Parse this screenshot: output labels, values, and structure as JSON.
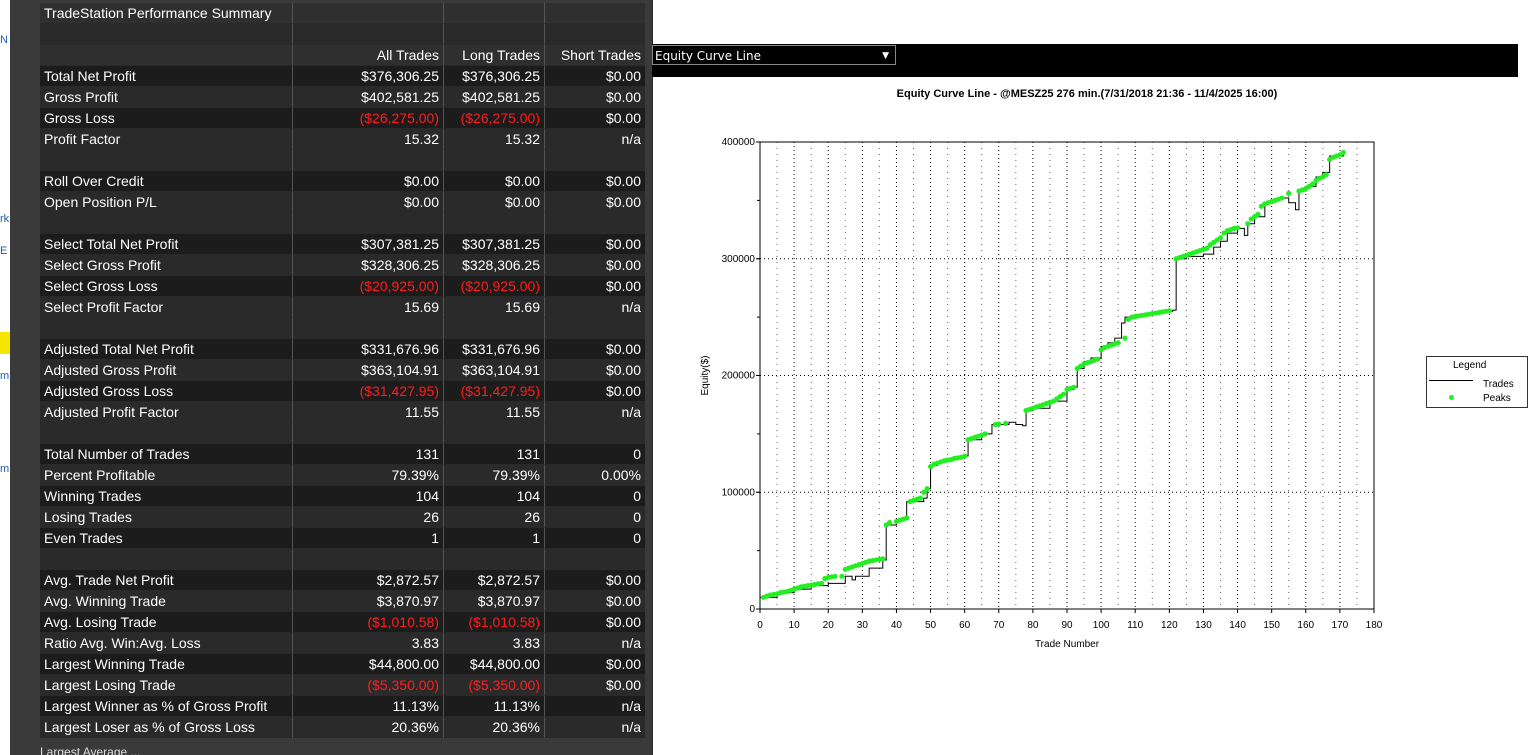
{
  "background": {
    "strip_chars": [
      "N",
      "rk",
      "E",
      "m",
      "m"
    ]
  },
  "summary": {
    "title": "TradeStation Performance Summary",
    "columns": [
      "All Trades",
      "Long Trades",
      "Short Trades"
    ],
    "rows": [
      {
        "label": "Total Net Profit",
        "all": "$376,306.25",
        "long": "$376,306.25",
        "short": "$0.00"
      },
      {
        "label": "Gross Profit",
        "all": "$402,581.25",
        "long": "$402,581.25",
        "short": "$0.00"
      },
      {
        "label": "Gross Loss",
        "all": "($26,275.00)",
        "long": "($26,275.00)",
        "short": "$0.00",
        "neg": true
      },
      {
        "label": "Profit Factor",
        "all": "15.32",
        "long": "15.32",
        "short": "n/a"
      },
      {
        "blank": true
      },
      {
        "label": "Roll Over Credit",
        "all": "$0.00",
        "long": "$0.00",
        "short": "$0.00"
      },
      {
        "label": "Open Position P/L",
        "all": "$0.00",
        "long": "$0.00",
        "short": "$0.00"
      },
      {
        "blank": true
      },
      {
        "label": "Select Total Net Profit",
        "all": "$307,381.25",
        "long": "$307,381.25",
        "short": "$0.00"
      },
      {
        "label": "Select Gross Profit",
        "all": "$328,306.25",
        "long": "$328,306.25",
        "short": "$0.00"
      },
      {
        "label": "Select Gross Loss",
        "all": "($20,925.00)",
        "long": "($20,925.00)",
        "short": "$0.00",
        "neg": true
      },
      {
        "label": "Select Profit Factor",
        "all": "15.69",
        "long": "15.69",
        "short": "n/a"
      },
      {
        "blank": true
      },
      {
        "label": "Adjusted Total Net Profit",
        "all": "$331,676.96",
        "long": "$331,676.96",
        "short": "$0.00"
      },
      {
        "label": "Adjusted Gross Profit",
        "all": "$363,104.91",
        "long": "$363,104.91",
        "short": "$0.00"
      },
      {
        "label": "Adjusted Gross Loss",
        "all": "($31,427.95)",
        "long": "($31,427.95)",
        "short": "$0.00",
        "neg": true
      },
      {
        "label": "Adjusted Profit Factor",
        "all": "11.55",
        "long": "11.55",
        "short": "n/a"
      },
      {
        "blank": true
      },
      {
        "label": "Total Number of Trades",
        "all": "131",
        "long": "131",
        "short": "0"
      },
      {
        "label": "Percent Profitable",
        "all": "79.39%",
        "long": "79.39%",
        "short": "0.00%"
      },
      {
        "label": "Winning Trades",
        "all": "104",
        "long": "104",
        "short": "0"
      },
      {
        "label": "Losing Trades",
        "all": "26",
        "long": "26",
        "short": "0"
      },
      {
        "label": "Even Trades",
        "all": "1",
        "long": "1",
        "short": "0"
      },
      {
        "blank": true
      },
      {
        "label": "Avg. Trade Net Profit",
        "all": "$2,872.57",
        "long": "$2,872.57",
        "short": "$0.00"
      },
      {
        "label": "Avg. Winning Trade",
        "all": "$3,870.97",
        "long": "$3,870.97",
        "short": "$0.00"
      },
      {
        "label": "Avg. Losing Trade",
        "all": "($1,010.58)",
        "long": "($1,010.58)",
        "short": "$0.00",
        "neg": true
      },
      {
        "label": "Ratio Avg. Win:Avg. Loss",
        "all": "3.83",
        "long": "3.83",
        "short": "n/a"
      },
      {
        "label": "Largest Winning Trade",
        "all": "$44,800.00",
        "long": "$44,800.00",
        "short": "$0.00"
      },
      {
        "label": "Largest Losing Trade",
        "all": "($5,350.00)",
        "long": "($5,350.00)",
        "short": "$0.00",
        "neg": true
      },
      {
        "label": "Largest Winner as % of Gross Profit",
        "all": "11.13%",
        "long": "11.13%",
        "short": "n/a"
      },
      {
        "label": "Largest Loser as % of Gross Loss",
        "all": "20.36%",
        "long": "20.36%",
        "short": "n/a"
      }
    ]
  },
  "chart_window": {
    "selector_value": "Equity Curve Line",
    "dropdown_icon": "chevron-down-icon"
  },
  "legend": {
    "title": "Legend",
    "items": [
      {
        "name": "Trades",
        "icon": "line",
        "color": "#000000"
      },
      {
        "name": "Peaks",
        "icon": "dot",
        "color": "#22ee22"
      }
    ]
  },
  "chart_data": {
    "type": "line",
    "title": "Equity Curve Line - @MESZ25 276 min.(7/31/2018 21:36 - 11/4/2025 16:00)",
    "xlabel": "Trade Number",
    "ylabel": "Equity($)",
    "xlim": [
      0,
      180
    ],
    "ylim": [
      0,
      400000
    ],
    "xticks": [
      "0",
      "10",
      "20",
      "30",
      "40",
      "50",
      "60",
      "70",
      "80",
      "90",
      "100",
      "110",
      "120",
      "130",
      "140",
      "150",
      "160",
      "170",
      "180"
    ],
    "yticks": [
      "0",
      "100000",
      "200000",
      "300000",
      "400000"
    ],
    "grid": true,
    "legend_position": "right",
    "series": [
      {
        "name": "Trades",
        "color": "#000000",
        "x": [
          0,
          5,
          10,
          15,
          20,
          25,
          27,
          28,
          32,
          36,
          37,
          40,
          42,
          43,
          48,
          49,
          50,
          52,
          55,
          58,
          60,
          61,
          65,
          67,
          68,
          70,
          73,
          75,
          77,
          78,
          80,
          85,
          90,
          92,
          93,
          95,
          97,
          100,
          102,
          104,
          106,
          107,
          110,
          115,
          118,
          121,
          122,
          125,
          130,
          133,
          135,
          137,
          140,
          142,
          143,
          145,
          148,
          150,
          152,
          155,
          157,
          158,
          160,
          163,
          165,
          167,
          171
        ],
        "y": [
          10000,
          14000,
          17000,
          20000,
          22000,
          28000,
          25000,
          28000,
          35000,
          42000,
          72000,
          76000,
          78000,
          92000,
          95000,
          103000,
          123000,
          126000,
          128000,
          130000,
          131000,
          145000,
          150000,
          150000,
          158000,
          158000,
          160000,
          158000,
          157000,
          170000,
          172000,
          178000,
          188000,
          190000,
          206000,
          212000,
          215000,
          225000,
          228000,
          232000,
          245000,
          250000,
          252000,
          254000,
          255000,
          256000,
          300000,
          302000,
          304000,
          310000,
          315000,
          322000,
          326000,
          320000,
          330000,
          336000,
          348000,
          350000,
          352000,
          348000,
          342000,
          358000,
          362000,
          370000,
          374000,
          388000,
          391000
        ]
      },
      {
        "name": "Peaks",
        "color": "#22ee22",
        "x": [
          1,
          2,
          3,
          4,
          5,
          6,
          7,
          8,
          9,
          10,
          11,
          12,
          13,
          14,
          15,
          16,
          17,
          18,
          19,
          20,
          21,
          22,
          24,
          25,
          26,
          27,
          28,
          29,
          30,
          31,
          32,
          33,
          34,
          35,
          36,
          37,
          38,
          40,
          41,
          42,
          43,
          44,
          45,
          46,
          47,
          48,
          49,
          50,
          51,
          52,
          53,
          54,
          55,
          56,
          57,
          58,
          59,
          60,
          61,
          62,
          63,
          64,
          65,
          66,
          69,
          70,
          72,
          78,
          79,
          80,
          81,
          82,
          83,
          84,
          85,
          86,
          87,
          88,
          89,
          90,
          91,
          92,
          93,
          94,
          95,
          96,
          97,
          98,
          99,
          100,
          101,
          102,
          103,
          104,
          105,
          107,
          108,
          109,
          110,
          111,
          112,
          113,
          114,
          115,
          116,
          117,
          118,
          119,
          120,
          122,
          123,
          124,
          125,
          126,
          127,
          128,
          129,
          130,
          131,
          132,
          133,
          134,
          135,
          136,
          137,
          138,
          139,
          140,
          143,
          144,
          145,
          146,
          147,
          148,
          149,
          150,
          151,
          152,
          153,
          155,
          158,
          159,
          160,
          161,
          162,
          163,
          164,
          165,
          166,
          167,
          168,
          169,
          170,
          171
        ],
        "y": [
          10000,
          11000,
          12000,
          12500,
          13000,
          14000,
          14500,
          15000,
          16000,
          17000,
          18000,
          19000,
          19500,
          20000,
          20500,
          21000,
          21500,
          22000,
          26000,
          27000,
          27500,
          28000,
          28000,
          34000,
          35000,
          36000,
          37000,
          38000,
          39000,
          40000,
          41000,
          41500,
          42000,
          42500,
          43000,
          72000,
          74000,
          75000,
          76000,
          77000,
          78000,
          92000,
          93000,
          94000,
          95000,
          100000,
          103000,
          122000,
          124000,
          125000,
          126000,
          127000,
          127500,
          128000,
          129000,
          129500,
          130000,
          131000,
          145000,
          146000,
          147000,
          148000,
          149000,
          150000,
          158000,
          158500,
          159000,
          170000,
          171000,
          172000,
          173000,
          174000,
          175000,
          176000,
          177000,
          178000,
          180000,
          182000,
          184000,
          188000,
          189000,
          190000,
          206000,
          208000,
          210000,
          211000,
          212000,
          213000,
          214000,
          222000,
          224000,
          225000,
          226000,
          227000,
          228000,
          232000,
          248000,
          250000,
          250500,
          251000,
          251500,
          252000,
          252500,
          253000,
          253500,
          254000,
          254500,
          255000,
          255500,
          300000,
          301000,
          302000,
          303000,
          304000,
          305000,
          306000,
          307000,
          308000,
          309000,
          312000,
          314000,
          316000,
          318000,
          322000,
          324000,
          325000,
          326000,
          326500,
          330000,
          334000,
          336000,
          338000,
          345000,
          347000,
          348000,
          349000,
          350000,
          351000,
          352000,
          356000,
          358000,
          359000,
          360000,
          362000,
          364000,
          367000,
          369000,
          370000,
          372000,
          385000,
          387000,
          388000,
          389000,
          391000
        ]
      }
    ]
  }
}
